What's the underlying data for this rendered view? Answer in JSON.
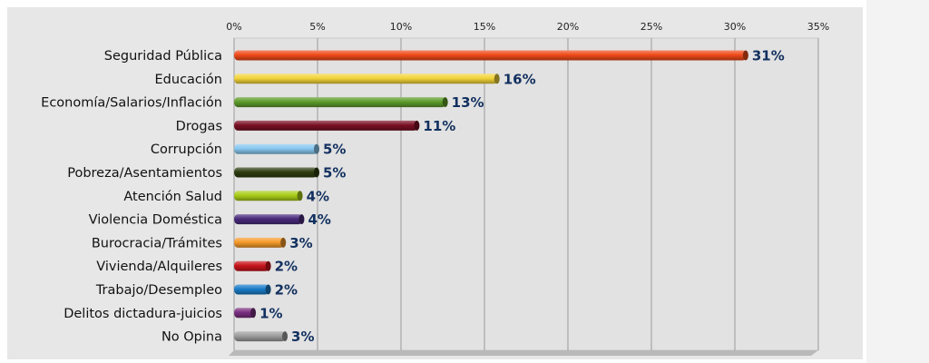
{
  "chart_data": {
    "type": "bar",
    "orientation": "horizontal",
    "categories": [
      "Seguridad Pública",
      "Educación",
      "Economía/Salarios/Inflación",
      "Drogas",
      "Corrupción",
      "Pobreza/Asentamientos",
      "Atención Salud",
      "Violencia Doméstica",
      "Burocracia/Trámites",
      "Vivienda/Alquileres",
      "Trabajo/Desempleo",
      "Delitos dictadura-juicios",
      "No Opina"
    ],
    "values": [
      30.7,
      15.8,
      12.7,
      11.0,
      5.0,
      5.0,
      4.0,
      4.1,
      3.0,
      2.1,
      2.1,
      1.2,
      3.1
    ],
    "value_labels": [
      "31%",
      "16%",
      "13%",
      "11%",
      "5%",
      "5%",
      "4%",
      "4%",
      "3%",
      "2%",
      "2%",
      "1%",
      "3%"
    ],
    "colors": [
      "#f04a1a",
      "#f2d43a",
      "#5e9c2a",
      "#7a0f24",
      "#88c8f0",
      "#2e3d10",
      "#a8cc18",
      "#4a2a7c",
      "#f59a2a",
      "#c8141c",
      "#1a7cc8",
      "#7a2f80",
      "#9e9e9e"
    ],
    "xlim": [
      0,
      35
    ],
    "xticks": [
      "0%",
      "5%",
      "10%",
      "15%",
      "20%",
      "25%",
      "30%",
      "35%"
    ],
    "tick_values": [
      0,
      5,
      10,
      15,
      20,
      25,
      30,
      35
    ],
    "grid": true,
    "background_color": "#e7e7e7",
    "title": "",
    "xlabel": "",
    "ylabel": ""
  }
}
